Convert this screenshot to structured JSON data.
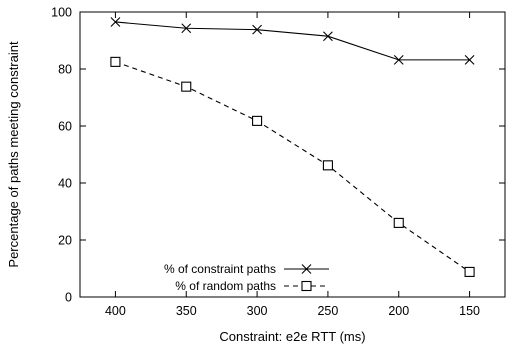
{
  "chart_data": {
    "type": "line",
    "xlabel": "Constraint: e2e RTT (ms)",
    "ylabel": "Percentage of paths meeting constraint",
    "x": [
      400,
      350,
      300,
      250,
      200,
      150
    ],
    "x_tick_labels": [
      "400",
      "350",
      "300",
      "250",
      "200",
      "150"
    ],
    "y_ticks": [
      0,
      20,
      40,
      60,
      80,
      100
    ],
    "y_tick_labels": [
      "0",
      "20",
      "40",
      "60",
      "80",
      "100"
    ],
    "xlim": [
      425,
      125
    ],
    "ylim": [
      0,
      100
    ],
    "grid": false,
    "legend_position": "bottom-left",
    "series": [
      {
        "name": "% of constraint paths",
        "marker": "x",
        "line_style": "solid",
        "color": "#000000",
        "values": [
          96.5,
          94.3,
          93.8,
          91.5,
          83.2,
          83.2
        ]
      },
      {
        "name": "% of random paths",
        "marker": "square",
        "line_style": "dashed",
        "color": "#000000",
        "values": [
          82.5,
          73.8,
          61.8,
          46.2,
          26.0,
          8.8
        ]
      }
    ]
  }
}
